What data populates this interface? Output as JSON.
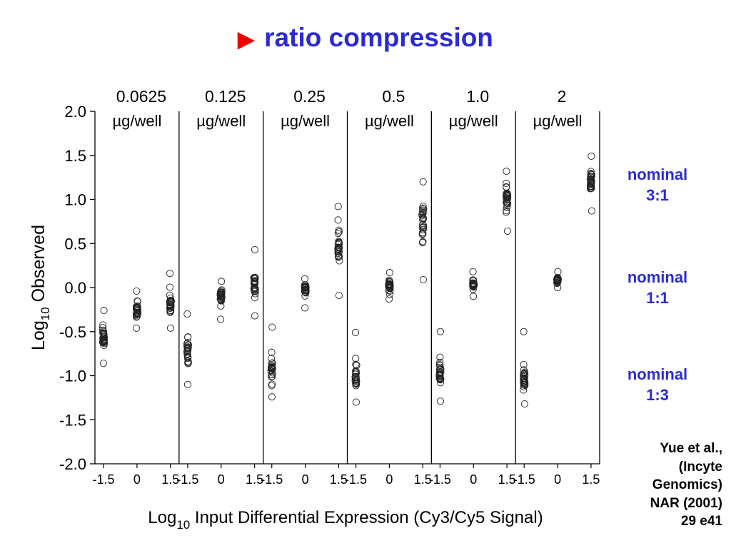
{
  "slide": {
    "title": "ratio compression",
    "bullet_glyph": "▶",
    "bullet_color": "#ee0000",
    "title_color": "#2b2bd6"
  },
  "annotations": [
    {
      "line1": "nominal",
      "line2": "3:1"
    },
    {
      "line1": "nominal",
      "line2": "1:1"
    },
    {
      "line1": "nominal",
      "line2": "1:3"
    }
  ],
  "citation": [
    "Yue et al.,",
    "(Incyte",
    "Genomics)",
    "NAR (2001)",
    "29 e41"
  ],
  "chart_data": {
    "type": "scatter",
    "ylabel_main": "Log",
    "ylabel_sub": "10",
    "ylabel_rest": " Observed",
    "xlabel_main": "Log",
    "xlabel_sub": "10",
    "xlabel_rest": " Input Differential Expression (Cy3/Cy5 Signal)",
    "ylim": [
      -2.0,
      2.0
    ],
    "yticks": [
      "2.0",
      "1.5",
      "1.0",
      "0.5",
      "0.0",
      "-0.5",
      "-1.0",
      "-1.5",
      "-2.0"
    ],
    "ytick_values": [
      2.0,
      1.5,
      1.0,
      0.5,
      0.0,
      -0.5,
      -1.0,
      -1.5,
      -2.0
    ],
    "xtick_labels": [
      "-1.5",
      "0",
      "1.5"
    ],
    "xtick_values": [
      -1.5,
      0,
      1.5
    ],
    "marker": "open-circle",
    "panels": [
      {
        "dose": "0.0625",
        "unit": "µg/well",
        "groups": [
          {
            "x": -1.5,
            "y_min": -0.86,
            "y_max": -0.26,
            "center": -0.57
          },
          {
            "x": 0,
            "y_min": -0.46,
            "y_max": -0.04,
            "center": -0.27
          },
          {
            "x": 1.5,
            "y_min": -0.46,
            "y_max": 0.16,
            "center": -0.2
          }
        ]
      },
      {
        "dose": "0.125",
        "unit": "µg/well",
        "groups": [
          {
            "x": -1.5,
            "y_min": -1.1,
            "y_max": -0.3,
            "center": -0.72
          },
          {
            "x": 0,
            "y_min": -0.36,
            "y_max": 0.07,
            "center": -0.1
          },
          {
            "x": 1.5,
            "y_min": -0.32,
            "y_max": 0.43,
            "center": 0.05
          }
        ]
      },
      {
        "dose": "0.25",
        "unit": "µg/well",
        "groups": [
          {
            "x": -1.5,
            "y_min": -1.24,
            "y_max": -0.45,
            "center": -0.92
          },
          {
            "x": 0,
            "y_min": -0.23,
            "y_max": 0.1,
            "center": 0.0
          },
          {
            "x": 1.5,
            "y_min": -0.09,
            "y_max": 0.92,
            "center": 0.45
          }
        ]
      },
      {
        "dose": "0.5",
        "unit": "µg/well",
        "groups": [
          {
            "x": -1.5,
            "y_min": -1.3,
            "y_max": -0.51,
            "center": -1.0
          },
          {
            "x": 0,
            "y_min": -0.13,
            "y_max": 0.17,
            "center": 0.02
          },
          {
            "x": 1.5,
            "y_min": 0.09,
            "y_max": 1.2,
            "center": 0.78
          }
        ]
      },
      {
        "dose": "1.0",
        "unit": "µg/well",
        "groups": [
          {
            "x": -1.5,
            "y_min": -1.29,
            "y_max": -0.5,
            "center": -1.0
          },
          {
            "x": 0,
            "y_min": -0.1,
            "y_max": 0.18,
            "center": 0.04
          },
          {
            "x": 1.5,
            "y_min": 0.64,
            "y_max": 1.32,
            "center": 1.0
          }
        ]
      },
      {
        "dose": "2",
        "unit": "µg/well",
        "groups": [
          {
            "x": -1.5,
            "y_min": -1.32,
            "y_max": -0.5,
            "center": -1.05
          },
          {
            "x": 0,
            "y_min": 0.0,
            "y_max": 0.18,
            "center": 0.09
          },
          {
            "x": 1.5,
            "y_min": 0.87,
            "y_max": 1.49,
            "center": 1.2
          }
        ]
      }
    ]
  }
}
